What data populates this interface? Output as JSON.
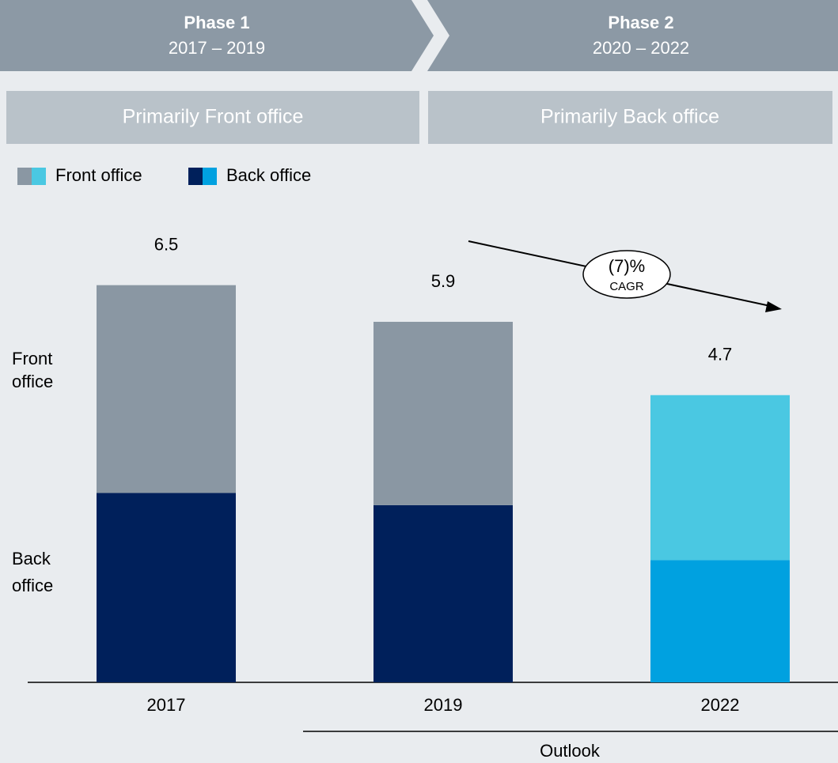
{
  "chart_data": {
    "type": "stacked_bar",
    "phases": [
      {
        "title": "Phase 1",
        "years": "2017 – 2019",
        "focus": "Primarily Front office"
      },
      {
        "title": "Phase 2",
        "years": "2020 – 2022",
        "focus": "Primarily Back office"
      }
    ],
    "categories": [
      "2017",
      "2019",
      "2022"
    ],
    "series": [
      {
        "name": "Back office",
        "side_label": [
          "Back",
          "office"
        ],
        "colors": [
          "#00205b",
          "#00205b",
          "#00a1e0"
        ],
        "values": [
          3.1,
          2.9,
          2.0
        ]
      },
      {
        "name": "Front office",
        "side_label": [
          "Front",
          "office"
        ],
        "colors": [
          "#8a97a3",
          "#8a97a3",
          "#4ac8e2"
        ],
        "values": [
          3.4,
          3.0,
          2.7
        ]
      }
    ],
    "totals": [
      6.5,
      5.9,
      4.7
    ],
    "ylim": [
      0,
      7
    ],
    "annotation": {
      "value": "(7)%",
      "label": "CAGR"
    },
    "outlook": "Outlook"
  }
}
